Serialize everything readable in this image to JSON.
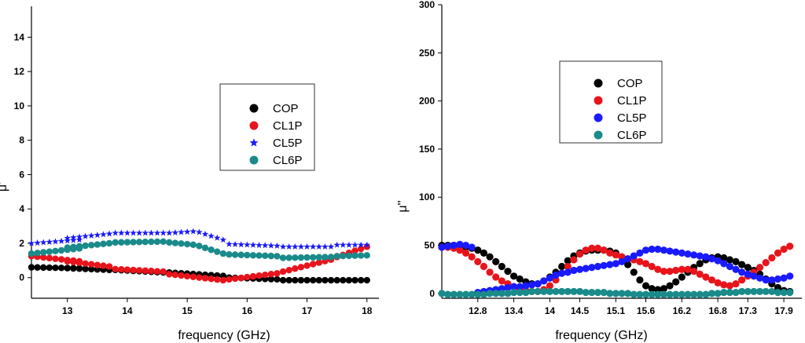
{
  "chart_data": [
    {
      "type": "scatter",
      "title": "",
      "xlabel": "frequency (GHz)",
      "ylabel": "μ'",
      "xlim": [
        12.4,
        18.2
      ],
      "ylim": [
        -1.2,
        15.8
      ],
      "x_ticks": [
        13,
        14,
        15,
        16,
        17,
        18
      ],
      "x_tick_labels": [
        "13",
        "14",
        "15",
        "16",
        "17",
        "18"
      ],
      "y_ticks": [
        0,
        2,
        4,
        6,
        8,
        10,
        12,
        14
      ],
      "y_tick_labels": [
        "0",
        "2",
        "4",
        "6",
        "8",
        "10",
        "12",
        "14"
      ],
      "legend_position": "center-right",
      "x_segments": [
        [
          12.4,
          13.2
        ],
        [
          13.0,
          13.7
        ],
        [
          13.8,
          14.6
        ],
        [
          14.7,
          15.6
        ],
        [
          15.7,
          16.5
        ],
        [
          16.6,
          17.4
        ],
        [
          17.5,
          18.0
        ]
      ],
      "series": [
        {
          "name": "COP",
          "color": "#000000",
          "marker": "circle",
          "segments": [
            [
              0.6,
              0.55
            ],
            [
              0.55,
              0.45
            ],
            [
              0.45,
              0.3
            ],
            [
              0.3,
              0.1
            ],
            [
              0.0,
              -0.1
            ],
            [
              -0.15,
              -0.15
            ],
            [
              -0.15,
              -0.15
            ]
          ]
        },
        {
          "name": "CL1P",
          "color": "#e8141b",
          "marker": "circle",
          "segments": [
            [
              1.25,
              0.95
            ],
            [
              0.95,
              0.65
            ],
            [
              0.5,
              0.35
            ],
            [
              0.2,
              -0.15
            ],
            [
              -0.1,
              0.25
            ],
            [
              0.35,
              1.05
            ],
            [
              1.2,
              1.8
            ]
          ]
        },
        {
          "name": "CL5P",
          "color": "#1a1aff",
          "marker": "star",
          "segments": [
            [
              2.0,
              2.2
            ],
            [
              2.3,
              2.55
            ],
            [
              2.6,
              2.6
            ],
            [
              2.6,
              2.7,
              2.2
            ],
            [
              1.95,
              1.85
            ],
            [
              1.8,
              1.8
            ],
            [
              1.9,
              1.9
            ]
          ]
        },
        {
          "name": "CL6P",
          "color": "#1a8a8a",
          "marker": "circle",
          "segments": [
            [
              1.4,
              1.7
            ],
            [
              1.75,
              2.0
            ],
            [
              2.05,
              2.1
            ],
            [
              2.05,
              1.9,
              1.4
            ],
            [
              1.35,
              1.25
            ],
            [
              1.15,
              1.2
            ],
            [
              1.25,
              1.3
            ]
          ]
        }
      ]
    },
    {
      "type": "scatter",
      "title": "",
      "xlabel": "frequency (GHz)",
      "ylabel": "μ''",
      "xlim": [
        12.2,
        18.2
      ],
      "ylim": [
        -5,
        300
      ],
      "x_ticks": [
        12.8,
        13.4,
        14.0,
        14.5,
        15.1,
        15.6,
        16.2,
        16.8,
        17.3,
        17.9
      ],
      "x_tick_labels": [
        "12.8",
        "13.4",
        "14",
        "14.5",
        "15.1",
        "15.6",
        "16.2",
        "16.8",
        "17.3",
        "17.9"
      ],
      "y_ticks": [
        0,
        50,
        100,
        150,
        200,
        250,
        300
      ],
      "y_tick_labels": [
        "0",
        "50",
        "100",
        "150",
        "200",
        "250",
        "300"
      ],
      "legend_position": "center",
      "series": [
        {
          "name": "COP",
          "color": "#000000",
          "marker": "circle",
          "x": [
            12.2,
            12.3,
            12.4,
            12.5,
            12.6,
            12.7,
            12.8,
            12.9,
            13.0,
            13.1,
            13.2,
            13.3,
            13.4,
            13.5,
            13.6,
            13.7,
            13.8,
            13.9,
            14.0,
            14.1,
            14.2,
            14.3,
            14.4,
            14.5,
            14.6,
            14.7,
            14.8,
            14.9,
            15.0,
            15.1,
            15.2,
            15.3,
            15.4,
            15.5,
            15.6,
            15.7,
            15.8,
            15.9,
            16.0,
            16.1,
            16.2,
            16.3,
            16.4,
            16.5,
            16.6,
            16.7,
            16.8,
            16.9,
            17.0,
            17.1,
            17.2,
            17.3,
            17.4,
            17.5,
            17.6,
            17.7,
            17.8,
            17.9,
            18.0
          ],
          "y": [
            50,
            50,
            50,
            49,
            48,
            47,
            45,
            42,
            38,
            33,
            28,
            23,
            18,
            15,
            12,
            10,
            10,
            13,
            17,
            22,
            28,
            34,
            39,
            42,
            44,
            45,
            45,
            45,
            44,
            42,
            38,
            30,
            22,
            14,
            8,
            5,
            4,
            5,
            8,
            12,
            17,
            22,
            27,
            31,
            35,
            37,
            38,
            37,
            35,
            33,
            30,
            27,
            24,
            20,
            15,
            10,
            6,
            3,
            2
          ]
        },
        {
          "name": "CL1P",
          "color": "#e8141b",
          "marker": "circle",
          "x": [
            12.2,
            12.3,
            12.4,
            12.5,
            12.6,
            12.7,
            12.8,
            12.9,
            13.0,
            13.1,
            13.2,
            13.3,
            13.4,
            13.5,
            13.6,
            13.7,
            13.8,
            13.9,
            14.0,
            14.1,
            14.2,
            14.3,
            14.4,
            14.5,
            14.6,
            14.7,
            14.8,
            14.9,
            15.0,
            15.1,
            15.2,
            15.3,
            15.4,
            15.5,
            15.6,
            15.7,
            15.8,
            15.9,
            16.0,
            16.1,
            16.2,
            16.3,
            16.4,
            16.5,
            16.6,
            16.7,
            16.8,
            16.9,
            17.0,
            17.1,
            17.2,
            17.3,
            17.4,
            17.5,
            17.6,
            17.7,
            17.8,
            17.9,
            18.0
          ],
          "y": [
            48,
            48,
            47,
            45,
            42,
            38,
            33,
            28,
            22,
            17,
            13,
            10,
            7,
            5,
            3,
            2,
            2,
            4,
            8,
            14,
            21,
            28,
            35,
            41,
            45,
            47,
            47,
            45,
            42,
            40,
            38,
            36,
            35,
            33,
            31,
            28,
            25,
            23,
            23,
            24,
            25,
            25,
            23,
            20,
            17,
            14,
            11,
            9,
            8,
            10,
            14,
            18,
            22,
            27,
            32,
            37,
            42,
            46,
            49
          ]
        },
        {
          "name": "CL5P",
          "color": "#1a1aff",
          "marker": "circle",
          "x": [
            12.2,
            12.3,
            12.4,
            12.5,
            12.6,
            12.7,
            12.8,
            12.9,
            13.0,
            13.1,
            13.2,
            13.3,
            13.4,
            13.5,
            13.6,
            13.7,
            13.8,
            13.9,
            14.0,
            14.1,
            14.2,
            14.3,
            14.4,
            14.5,
            14.6,
            14.7,
            14.8,
            14.9,
            15.0,
            15.1,
            15.2,
            15.3,
            15.4,
            15.5,
            15.6,
            15.7,
            15.8,
            15.9,
            16.0,
            16.1,
            16.2,
            16.3,
            16.4,
            16.5,
            16.6,
            16.7,
            16.8,
            16.9,
            17.0,
            17.1,
            17.2,
            17.3,
            17.4,
            17.5,
            17.6,
            17.7,
            17.8,
            17.9,
            18.0
          ],
          "y": [
            48,
            49,
            50,
            51,
            50,
            48,
            1,
            2,
            3,
            4,
            5,
            6,
            7,
            7,
            8,
            9,
            10,
            13,
            16,
            19,
            21,
            22,
            24,
            25,
            26,
            27,
            28,
            29,
            30,
            31,
            33,
            36,
            39,
            42,
            45,
            46,
            46,
            45,
            44,
            43,
            42,
            41,
            40,
            39,
            38,
            36,
            34,
            31,
            28,
            25,
            22,
            20,
            18,
            16,
            14,
            14,
            15,
            16,
            18
          ]
        },
        {
          "name": "CL6P",
          "color": "#1a8a8a",
          "marker": "circle",
          "x": [
            12.2,
            12.3,
            12.4,
            12.5,
            12.6,
            12.7,
            12.8,
            12.9,
            13.0,
            13.1,
            13.2,
            13.3,
            13.4,
            13.5,
            13.6,
            13.7,
            13.8,
            13.9,
            14.0,
            14.1,
            14.2,
            14.3,
            14.4,
            14.5,
            14.6,
            14.7,
            14.8,
            14.9,
            15.0,
            15.1,
            15.2,
            15.3,
            15.4,
            15.5,
            15.6,
            15.7,
            15.8,
            15.9,
            16.0,
            16.1,
            16.2,
            16.3,
            16.4,
            16.5,
            16.6,
            16.7,
            16.8,
            16.9,
            17.0,
            17.1,
            17.2,
            17.3,
            17.4,
            17.5,
            17.6,
            17.7,
            17.8,
            17.9,
            18.0
          ],
          "y": [
            0,
            -1,
            -1,
            -1,
            -1,
            -1,
            -1,
            -1,
            0,
            0,
            0,
            0,
            1,
            1,
            1,
            2,
            2,
            2,
            2,
            2,
            2,
            2,
            2,
            2,
            1,
            1,
            1,
            1,
            0,
            0,
            0,
            0,
            -1,
            -1,
            -1,
            -1,
            -1,
            -1,
            -1,
            -1,
            -1,
            -1,
            -1,
            -1,
            -1,
            0,
            0,
            1,
            1,
            1,
            2,
            2,
            2,
            2,
            2,
            2,
            1,
            1,
            1
          ]
        }
      ]
    }
  ]
}
